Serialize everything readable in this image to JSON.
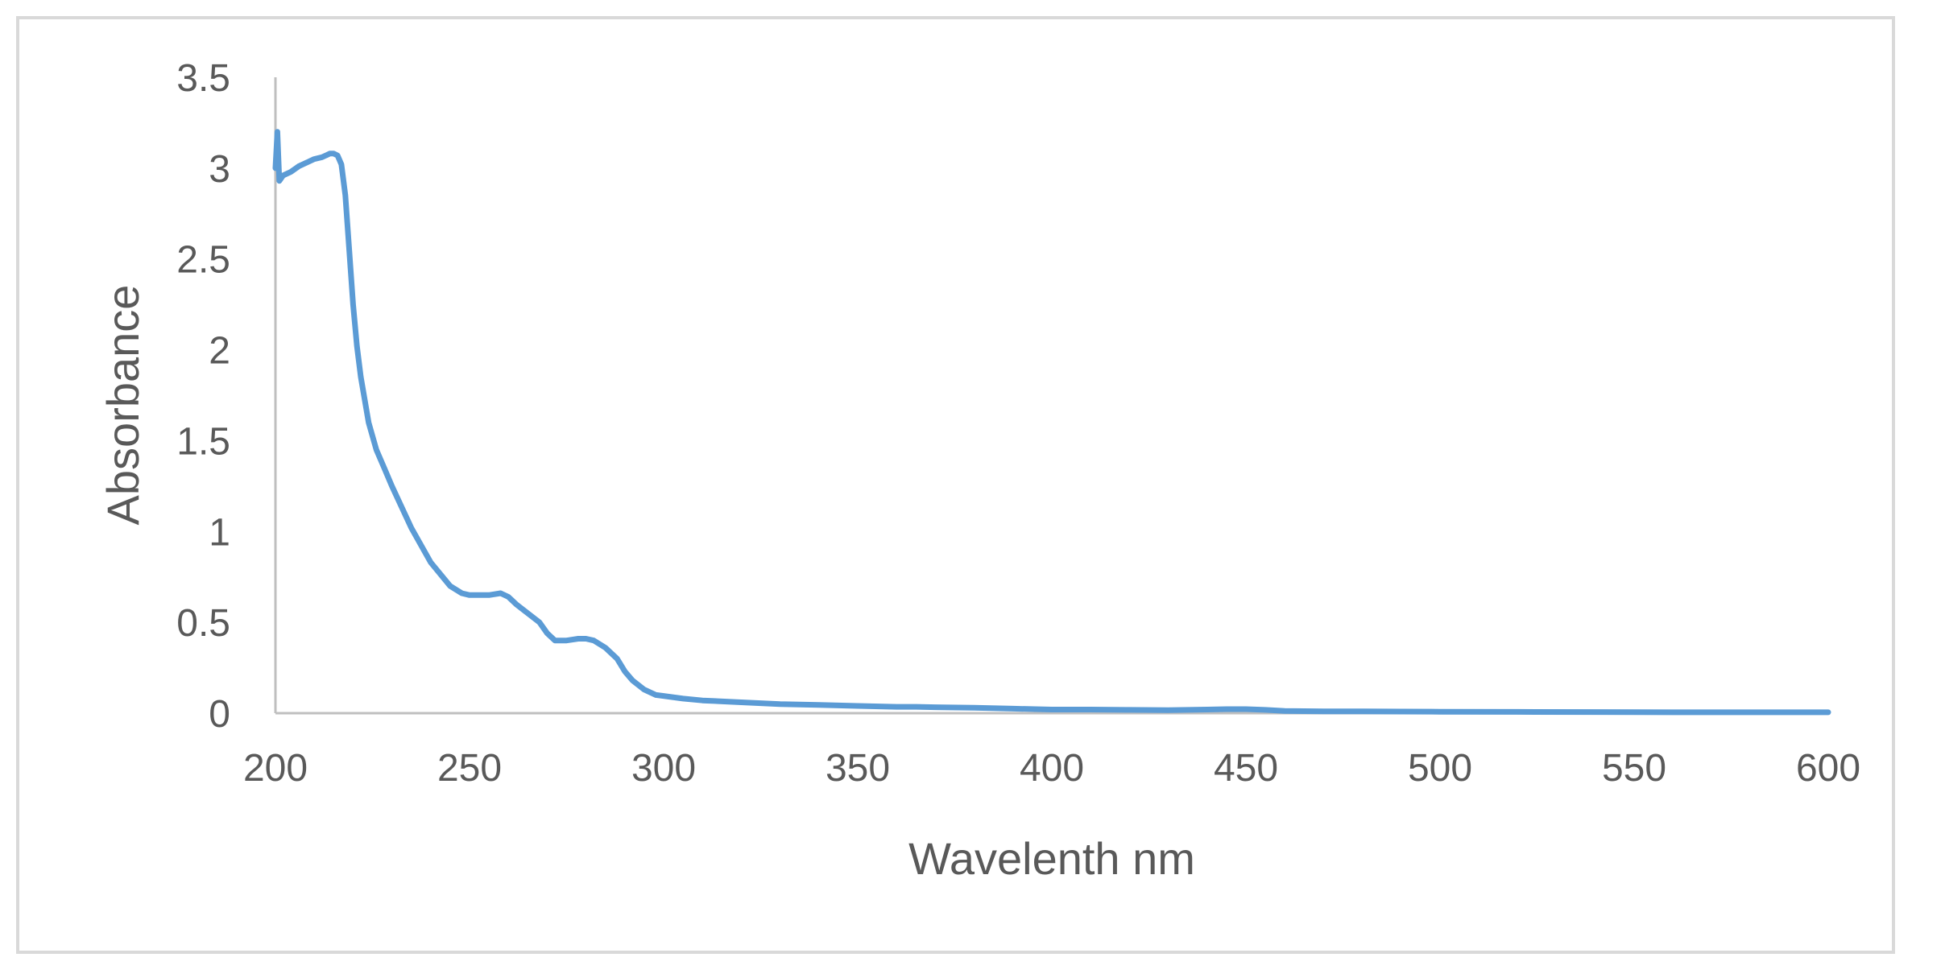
{
  "chart_data": {
    "type": "line",
    "title": "",
    "xlabel": "Wavelenth nm",
    "ylabel": "Absorbance",
    "xlim": [
      200,
      600
    ],
    "ylim": [
      0,
      3.5
    ],
    "x_ticks": [
      "200",
      "250",
      "300",
      "350",
      "400",
      "450",
      "500",
      "550",
      "600"
    ],
    "y_ticks": [
      "0",
      "0.5",
      "1",
      "1.5",
      "2",
      "2.5",
      "3",
      "3.5"
    ],
    "grid": false,
    "legend": "none",
    "colors": {
      "series": "#5b9bd5",
      "axis": "#bfbfbf",
      "text": "#595959",
      "frame": "#d9d9d9"
    },
    "series": [
      {
        "x": [
          200,
          200.5,
          201,
          202,
          204,
          206,
          208,
          210,
          212,
          213,
          214,
          215,
          216,
          217,
          218,
          219,
          220,
          221,
          222,
          224,
          226,
          228,
          230,
          235,
          240,
          245,
          248,
          250,
          252,
          255,
          258,
          260,
          262,
          265,
          268,
          270,
          272,
          275,
          278,
          280,
          282,
          285,
          288,
          290,
          292,
          295,
          298,
          300,
          305,
          310,
          320,
          330,
          340,
          350,
          360,
          365,
          370,
          380,
          390,
          400,
          410,
          420,
          430,
          440,
          445,
          450,
          455,
          460,
          470,
          480,
          490,
          500,
          520,
          540,
          560,
          580,
          600
        ],
        "y": [
          3.0,
          3.2,
          2.93,
          2.96,
          2.98,
          3.01,
          3.03,
          3.05,
          3.06,
          3.07,
          3.08,
          3.08,
          3.07,
          3.02,
          2.85,
          2.55,
          2.25,
          2.02,
          1.85,
          1.6,
          1.45,
          1.35,
          1.25,
          1.02,
          0.83,
          0.7,
          0.66,
          0.65,
          0.65,
          0.65,
          0.66,
          0.64,
          0.6,
          0.55,
          0.5,
          0.44,
          0.4,
          0.4,
          0.41,
          0.41,
          0.4,
          0.36,
          0.3,
          0.23,
          0.18,
          0.13,
          0.1,
          0.095,
          0.08,
          0.07,
          0.06,
          0.05,
          0.045,
          0.04,
          0.035,
          0.035,
          0.033,
          0.03,
          0.025,
          0.02,
          0.02,
          0.018,
          0.017,
          0.02,
          0.022,
          0.022,
          0.018,
          0.012,
          0.01,
          0.01,
          0.009,
          0.008,
          0.007,
          0.006,
          0.005,
          0.005,
          0.005
        ]
      }
    ]
  }
}
